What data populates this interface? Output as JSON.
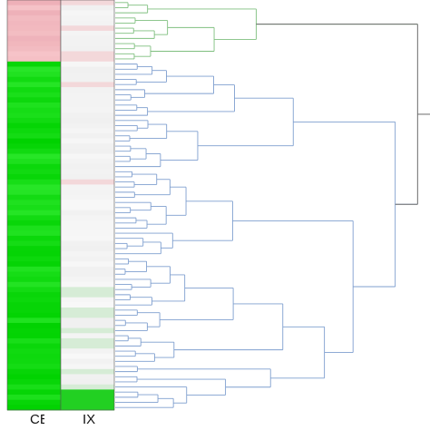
{
  "colors": {
    "group_a_branch": "#7fbf7f",
    "group_b_branch": "#7f9fcf",
    "root_branch": "#6b6b6b",
    "heat_high": "#00dd00",
    "heat_low": "#f0b8be",
    "heat_neutral": "#f4f4f4",
    "heat_border": "#555555"
  },
  "heatmap": {
    "rows": 80,
    "col1": {
      "label": "CE",
      "cells": [
        "r",
        "r",
        "r",
        "r",
        "r",
        "r",
        "r",
        "r",
        "r",
        "r",
        "r",
        "r",
        "g",
        "g",
        "g",
        "g",
        "g",
        "g",
        "g",
        "g",
        "g",
        "g",
        "g",
        "g",
        "g",
        "g",
        "g",
        "g",
        "g",
        "g",
        "g",
        "g",
        "g",
        "g",
        "g",
        "g",
        "g",
        "g",
        "g",
        "g",
        "g",
        "g",
        "g",
        "g",
        "g",
        "g",
        "g",
        "g",
        "g",
        "g",
        "g",
        "g",
        "g",
        "g",
        "g",
        "g",
        "g",
        "g",
        "g",
        "g",
        "g",
        "g",
        "g",
        "g",
        "g",
        "g",
        "g",
        "g",
        "g",
        "g",
        "g",
        "g",
        "g",
        "g",
        "g",
        "g",
        "g",
        "g",
        "g",
        "g"
      ]
    },
    "col2": {
      "label": "IX",
      "cells": [
        "p",
        "w",
        "w",
        "w",
        "w",
        "p",
        "w",
        "w",
        "w",
        "w",
        "p",
        "p",
        "w",
        "w",
        "w",
        "w",
        "p",
        "w",
        "w",
        "w",
        "w",
        "w",
        "w",
        "w",
        "w",
        "w",
        "w",
        "w",
        "w",
        "w",
        "w",
        "w",
        "w",
        "w",
        "w",
        "p",
        "w",
        "w",
        "w",
        "w",
        "w",
        "w",
        "w",
        "w",
        "w",
        "w",
        "w",
        "w",
        "w",
        "w",
        "w",
        "w",
        "w",
        "w",
        "w",
        "w",
        "l",
        "l",
        "w",
        "w",
        "l",
        "l",
        "w",
        "w",
        "l",
        "w",
        "l",
        "l",
        "w",
        "w",
        "w",
        "w",
        "l",
        "w",
        "w",
        "l",
        "G",
        "G",
        "G",
        "G"
      ]
    }
  },
  "dendrogram": {
    "groups": [
      {
        "name": "a",
        "leaves": 12
      },
      {
        "name": "b",
        "leaves": 68
      }
    ]
  }
}
